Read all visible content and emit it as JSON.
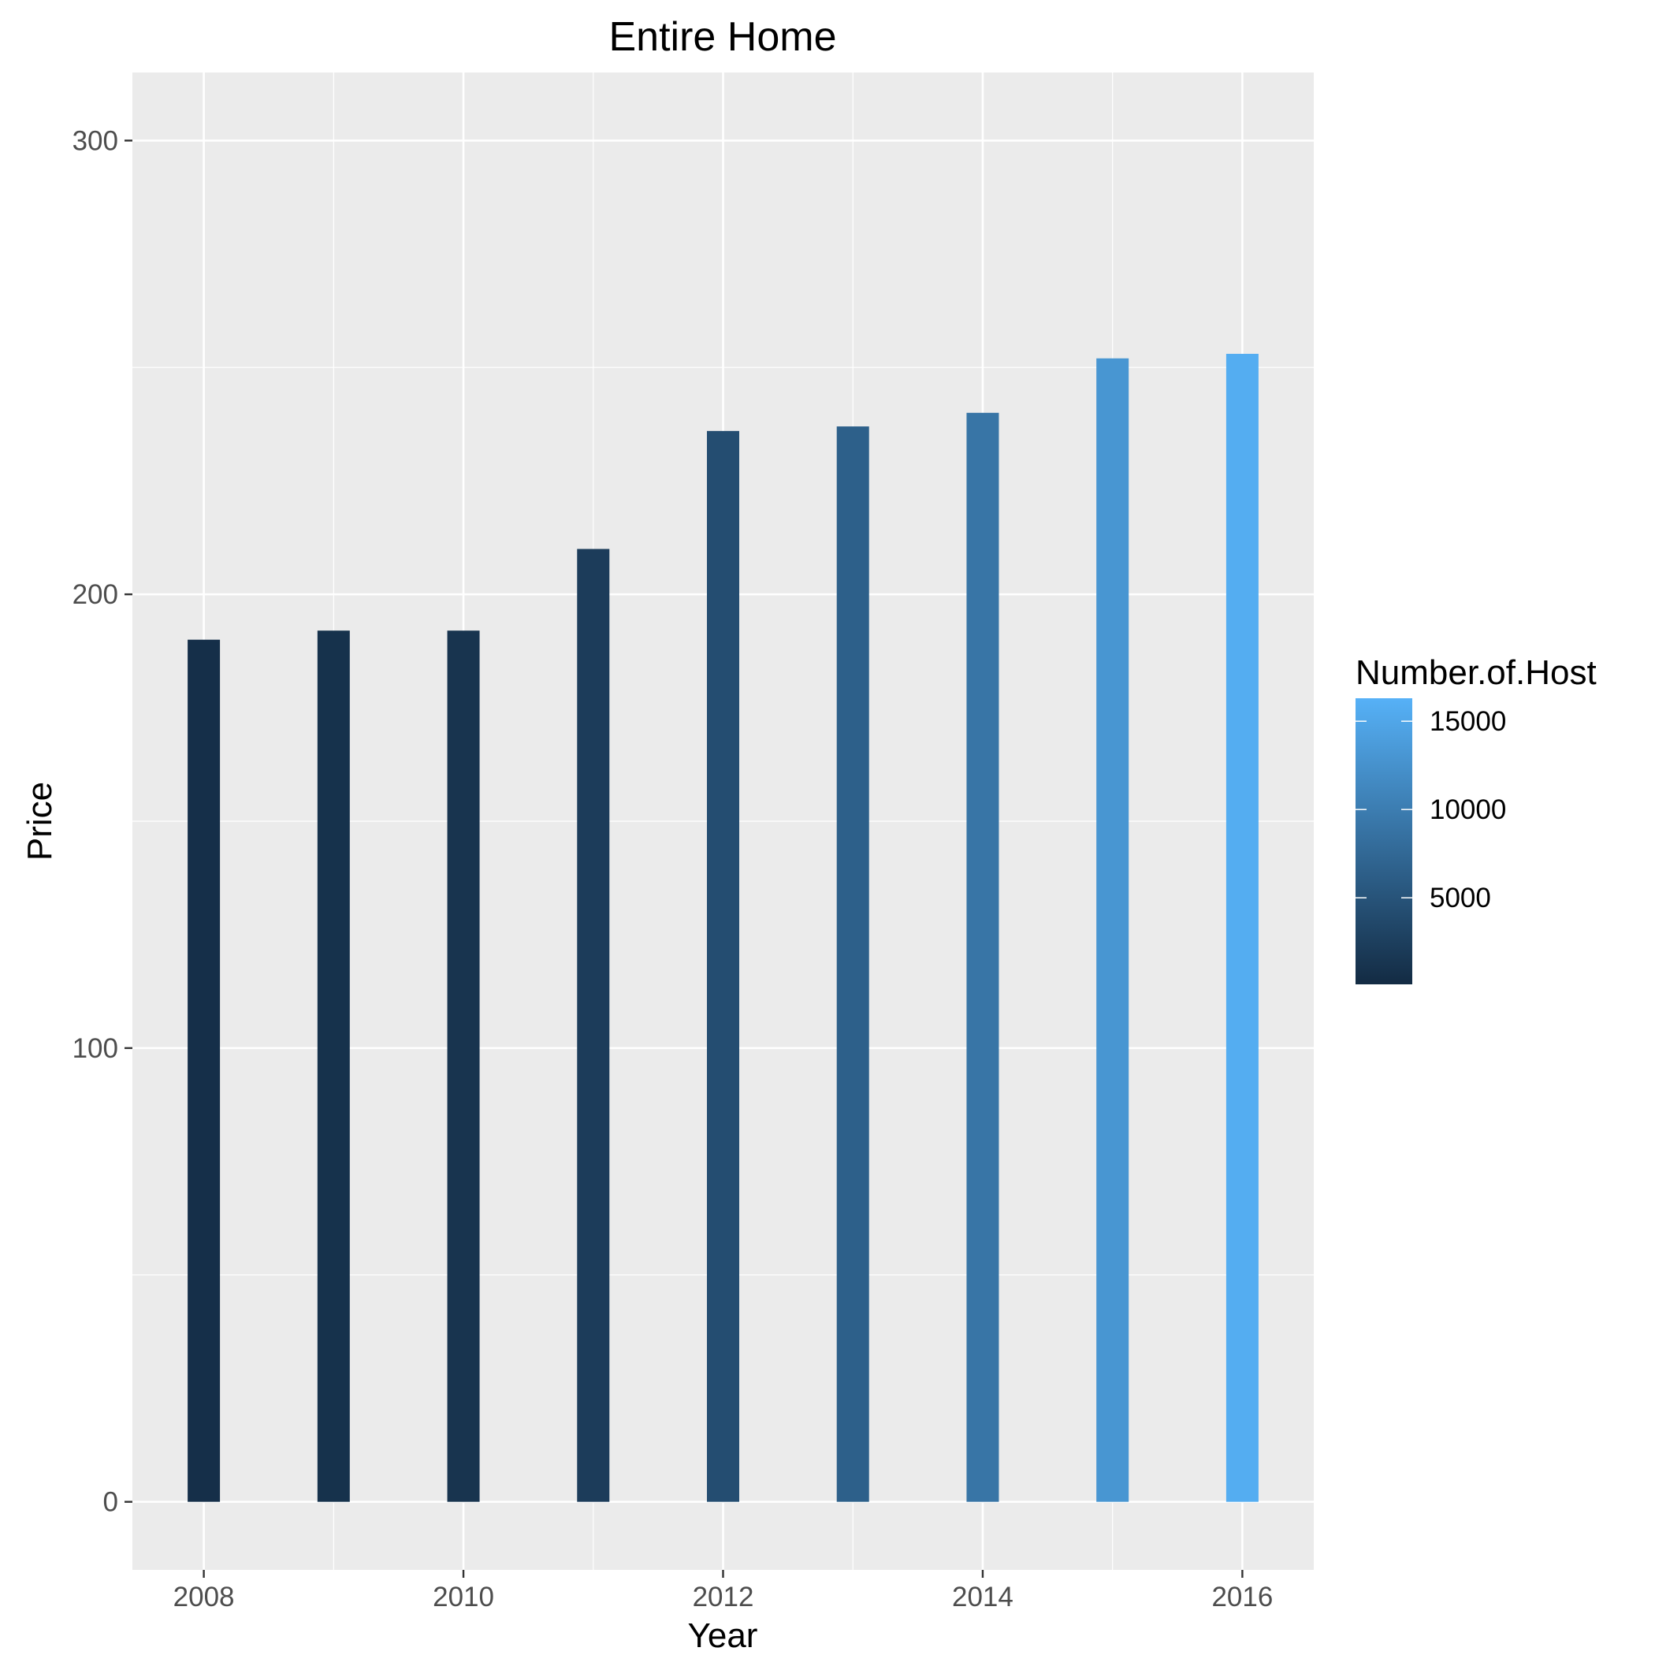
{
  "chart_data": {
    "type": "bar",
    "title": "Entire Home",
    "xlabel": "Year",
    "ylabel": "Price",
    "x": [
      2008,
      2009,
      2010,
      2011,
      2012,
      2013,
      2014,
      2015,
      2016
    ],
    "values": [
      190,
      192,
      192,
      210,
      236,
      237,
      240,
      252,
      253
    ],
    "color_values": [
      600,
      900,
      1200,
      2200,
      4200,
      6500,
      9000,
      13000,
      15800
    ],
    "xlim": [
      2007.45,
      2016.55
    ],
    "ylim": [
      -15,
      315
    ],
    "xticks": [
      2008,
      2010,
      2012,
      2014,
      2016
    ],
    "yticks": [
      0,
      100,
      200,
      300
    ],
    "grid": true,
    "legend": {
      "title": "Number.of.Host",
      "position": "right",
      "ticks": [
        5000,
        10000,
        15000
      ],
      "range": [
        100,
        16300
      ],
      "color_low": "#132B43",
      "color_high": "#56B1F7"
    },
    "panel_background": "#ebebeb",
    "grid_color": "#ffffff"
  }
}
